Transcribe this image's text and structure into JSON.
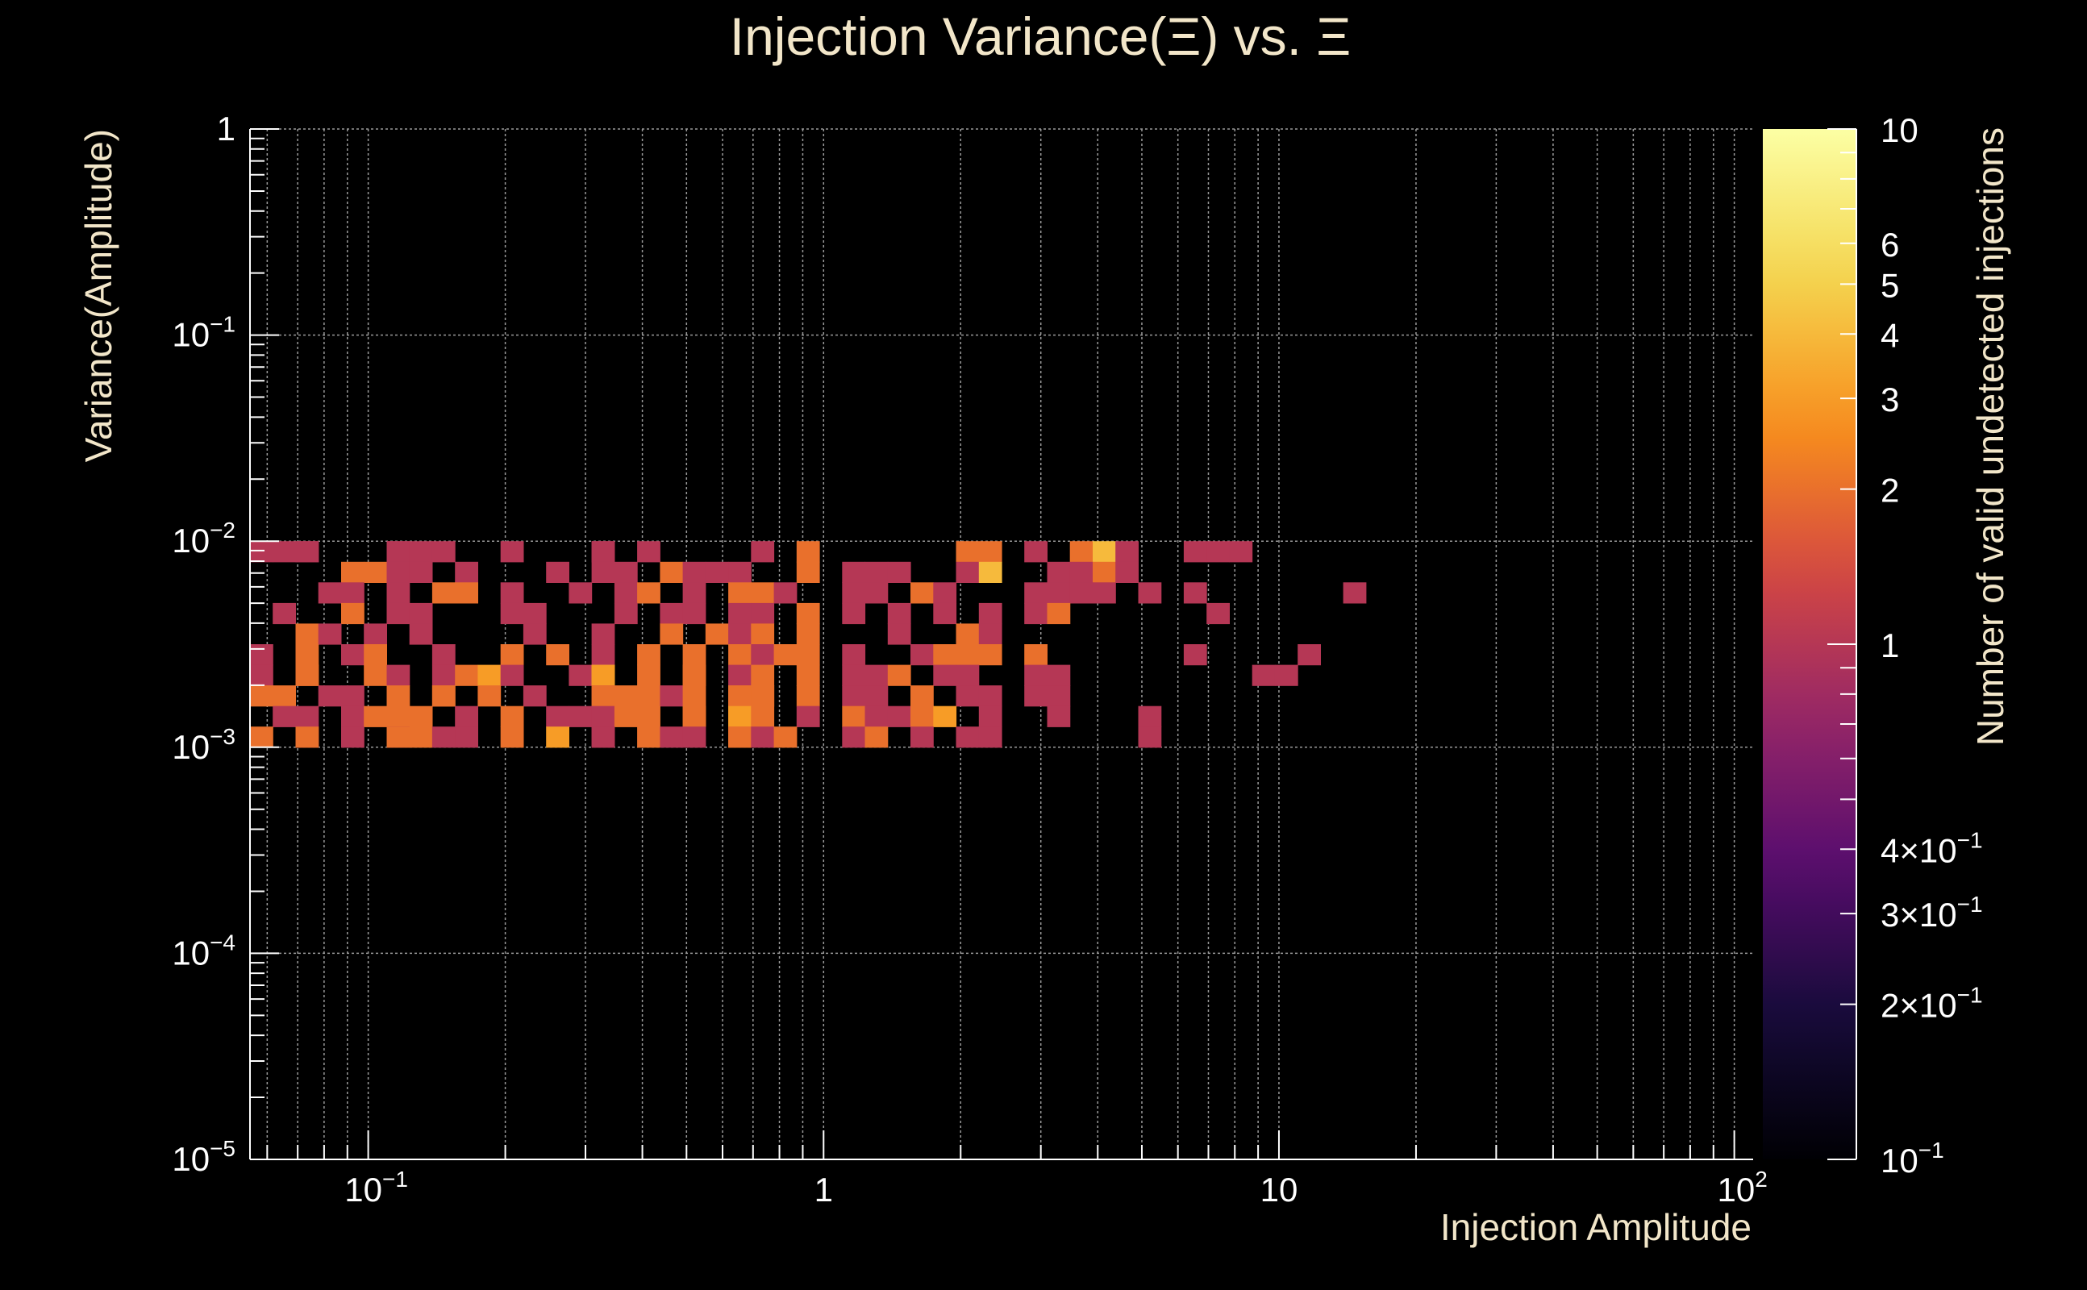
{
  "chart_data": {
    "type": "heatmap",
    "title": "Injection Variance(Ξ) vs. Ξ",
    "xlabel": "Injection Amplitude",
    "ylabel": "Variance(Amplitude)",
    "zlabel": "Number of valid undetected injections",
    "x_scale": "log",
    "y_scale": "log",
    "z_scale": "log",
    "xlim": [
      0.055,
      110
    ],
    "ylim": [
      1e-05,
      1
    ],
    "zlim": [
      0.1,
      10
    ],
    "grid": true,
    "colormap": "inferno",
    "x_bins": 66,
    "y_bins": 50,
    "x_ticks": [
      {
        "value": 0.1,
        "mant": "10",
        "exp": "−1"
      },
      {
        "value": 1,
        "mant": "1",
        "exp": ""
      },
      {
        "value": 10,
        "mant": "10",
        "exp": ""
      },
      {
        "value": 100,
        "mant": "10",
        "exp": "2"
      }
    ],
    "y_ticks": [
      {
        "value": 1,
        "mant": "1",
        "exp": ""
      },
      {
        "value": 0.1,
        "mant": "10",
        "exp": "−1"
      },
      {
        "value": 0.01,
        "mant": "10",
        "exp": "−2"
      },
      {
        "value": 0.001,
        "mant": "10",
        "exp": "−3"
      },
      {
        "value": 0.0001,
        "mant": "10",
        "exp": "−4"
      },
      {
        "value": 1e-05,
        "mant": "10",
        "exp": "−5"
      }
    ],
    "z_ticks": [
      {
        "value": 10,
        "mant": "10",
        "exp": ""
      },
      {
        "value": 6,
        "mant": "6",
        "exp": ""
      },
      {
        "value": 5,
        "mant": "5",
        "exp": ""
      },
      {
        "value": 4,
        "mant": "4",
        "exp": ""
      },
      {
        "value": 3,
        "mant": "3",
        "exp": ""
      },
      {
        "value": 2,
        "mant": "2",
        "exp": ""
      },
      {
        "value": 1,
        "mant": "1",
        "exp": ""
      },
      {
        "value": 0.4,
        "mant": "4×10",
        "exp": "−1"
      },
      {
        "value": 0.3,
        "mant": "3×10",
        "exp": "−1"
      },
      {
        "value": 0.2,
        "mant": "2×10",
        "exp": "−1"
      },
      {
        "value": 0.1,
        "mant": "10",
        "exp": "−1"
      }
    ],
    "cells": [
      {
        "x": 0.058,
        "y": 0.0093,
        "z": 1
      },
      {
        "x": 0.062,
        "y": 0.0093,
        "z": 1
      },
      {
        "x": 0.072,
        "y": 0.0093,
        "z": 1
      },
      {
        "x": 0.077,
        "y": 0.0093,
        "z": 1
      },
      {
        "x": 0.11,
        "y": 0.0093,
        "z": 1
      },
      {
        "x": 0.12,
        "y": 0.0093,
        "z": 1
      },
      {
        "x": 0.13,
        "y": 0.0093,
        "z": 1
      },
      {
        "x": 0.15,
        "y": 0.0093,
        "z": 1
      },
      {
        "x": 0.21,
        "y": 0.0093,
        "z": 1
      },
      {
        "x": 0.31,
        "y": 0.0093,
        "z": 1
      },
      {
        "x": 0.33,
        "y": 0.0093,
        "z": 1
      },
      {
        "x": 0.39,
        "y": 0.0093,
        "z": 1
      },
      {
        "x": 0.77,
        "y": 0.0093,
        "z": 1
      },
      {
        "x": 0.89,
        "y": 0.0093,
        "z": 2
      },
      {
        "x": 2.1,
        "y": 0.0093,
        "z": 2
      },
      {
        "x": 2.4,
        "y": 0.0093,
        "z": 2
      },
      {
        "x": 2.8,
        "y": 0.0093,
        "z": 1
      },
      {
        "x": 3.6,
        "y": 0.0093,
        "z": 2
      },
      {
        "x": 4.1,
        "y": 0.0093,
        "z": 4
      },
      {
        "x": 4.8,
        "y": 0.0093,
        "z": 1
      },
      {
        "x": 6.3,
        "y": 0.0093,
        "z": 1
      },
      {
        "x": 7.2,
        "y": 0.0093,
        "z": 1
      },
      {
        "x": 8.2,
        "y": 0.0093,
        "z": 1
      },
      {
        "x": 0.093,
        "y": 0.0074,
        "z": 2
      },
      {
        "x": 0.1,
        "y": 0.0074,
        "z": 2
      },
      {
        "x": 0.12,
        "y": 0.0074,
        "z": 1
      },
      {
        "x": 0.13,
        "y": 0.0074,
        "z": 1
      },
      {
        "x": 0.16,
        "y": 0.0074,
        "z": 1
      },
      {
        "x": 0.25,
        "y": 0.0074,
        "z": 1
      },
      {
        "x": 0.33,
        "y": 0.0074,
        "z": 1
      },
      {
        "x": 0.36,
        "y": 0.0074,
        "z": 1
      },
      {
        "x": 0.45,
        "y": 0.0074,
        "z": 2
      },
      {
        "x": 0.55,
        "y": 0.0074,
        "z": 1
      },
      {
        "x": 0.59,
        "y": 0.0074,
        "z": 1
      },
      {
        "x": 0.67,
        "y": 0.0074,
        "z": 1
      },
      {
        "x": 0.89,
        "y": 0.0074,
        "z": 2
      },
      {
        "x": 1.1,
        "y": 0.0074,
        "z": 1
      },
      {
        "x": 1.3,
        "y": 0.0074,
        "z": 1
      },
      {
        "x": 1.5,
        "y": 0.0074,
        "z": 1
      },
      {
        "x": 2.1,
        "y": 0.0074,
        "z": 1
      },
      {
        "x": 2.4,
        "y": 0.0074,
        "z": 4
      },
      {
        "x": 3.1,
        "y": 0.0074,
        "z": 1
      },
      {
        "x": 3.6,
        "y": 0.0074,
        "z": 1
      },
      {
        "x": 4.1,
        "y": 0.0074,
        "z": 2
      },
      {
        "x": 4.8,
        "y": 0.0074,
        "z": 1
      },
      {
        "x": 0.083,
        "y": 0.0059,
        "z": 1
      },
      {
        "x": 0.093,
        "y": 0.0059,
        "z": 1
      },
      {
        "x": 0.11,
        "y": 0.0059,
        "z": 1
      },
      {
        "x": 0.14,
        "y": 0.0059,
        "z": 2
      },
      {
        "x": 0.16,
        "y": 0.0059,
        "z": 2
      },
      {
        "x": 0.21,
        "y": 0.0059,
        "z": 1
      },
      {
        "x": 0.28,
        "y": 0.0059,
        "z": 1
      },
      {
        "x": 0.36,
        "y": 0.0059,
        "z": 1
      },
      {
        "x": 0.39,
        "y": 0.0059,
        "z": 2
      },
      {
        "x": 0.5,
        "y": 0.0059,
        "z": 1
      },
      {
        "x": 0.62,
        "y": 0.0059,
        "z": 2
      },
      {
        "x": 0.72,
        "y": 0.0059,
        "z": 2
      },
      {
        "x": 0.83,
        "y": 0.0059,
        "z": 1
      },
      {
        "x": 1.1,
        "y": 0.0059,
        "z": 1
      },
      {
        "x": 1.3,
        "y": 0.0059,
        "z": 1
      },
      {
        "x": 1.6,
        "y": 0.0059,
        "z": 2
      },
      {
        "x": 1.9,
        "y": 0.0059,
        "z": 1
      },
      {
        "x": 2.8,
        "y": 0.0059,
        "z": 1
      },
      {
        "x": 3.1,
        "y": 0.0059,
        "z": 1
      },
      {
        "x": 3.6,
        "y": 0.0059,
        "z": 1
      },
      {
        "x": 4.1,
        "y": 0.0059,
        "z": 1
      },
      {
        "x": 5.1,
        "y": 0.0059,
        "z": 1
      },
      {
        "x": 6.4,
        "y": 0.0059,
        "z": 1
      },
      {
        "x": 14,
        "y": 0.0059,
        "z": 1
      },
      {
        "x": 0.065,
        "y": 0.0047,
        "z": 1
      },
      {
        "x": 0.093,
        "y": 0.0047,
        "z": 2
      },
      {
        "x": 0.12,
        "y": 0.0047,
        "z": 1
      },
      {
        "x": 0.13,
        "y": 0.0047,
        "z": 1
      },
      {
        "x": 0.21,
        "y": 0.0047,
        "z": 1
      },
      {
        "x": 0.23,
        "y": 0.0047,
        "z": 1
      },
      {
        "x": 0.36,
        "y": 0.0047,
        "z": 1
      },
      {
        "x": 0.45,
        "y": 0.0047,
        "z": 1
      },
      {
        "x": 0.55,
        "y": 0.0047,
        "z": 1
      },
      {
        "x": 0.67,
        "y": 0.0047,
        "z": 1
      },
      {
        "x": 0.72,
        "y": 0.0047,
        "z": 1
      },
      {
        "x": 0.89,
        "y": 0.0047,
        "z": 2
      },
      {
        "x": 1.1,
        "y": 0.0047,
        "z": 1
      },
      {
        "x": 1.5,
        "y": 0.0047,
        "z": 1
      },
      {
        "x": 1.9,
        "y": 0.0047,
        "z": 1
      },
      {
        "x": 2.4,
        "y": 0.0047,
        "z": 1
      },
      {
        "x": 2.8,
        "y": 0.0047,
        "z": 1
      },
      {
        "x": 3.1,
        "y": 0.0047,
        "z": 2
      },
      {
        "x": 7.2,
        "y": 0.0047,
        "z": 1
      },
      {
        "x": 0.07,
        "y": 0.0037,
        "z": 2
      },
      {
        "x": 0.083,
        "y": 0.0037,
        "z": 1
      },
      {
        "x": 0.1,
        "y": 0.0037,
        "z": 1
      },
      {
        "x": 0.13,
        "y": 0.0037,
        "z": 1
      },
      {
        "x": 0.22,
        "y": 0.0037,
        "z": 1
      },
      {
        "x": 0.33,
        "y": 0.0037,
        "z": 1
      },
      {
        "x": 0.45,
        "y": 0.0037,
        "z": 2
      },
      {
        "x": 0.59,
        "y": 0.0037,
        "z": 2
      },
      {
        "x": 0.67,
        "y": 0.0037,
        "z": 1
      },
      {
        "x": 0.77,
        "y": 0.0037,
        "z": 2
      },
      {
        "x": 0.89,
        "y": 0.0037,
        "z": 2
      },
      {
        "x": 1.5,
        "y": 0.0037,
        "z": 1
      },
      {
        "x": 2.1,
        "y": 0.0037,
        "z": 2
      },
      {
        "x": 2.4,
        "y": 0.0037,
        "z": 1
      },
      {
        "x": 0.058,
        "y": 0.0029,
        "z": 1
      },
      {
        "x": 0.07,
        "y": 0.0029,
        "z": 2
      },
      {
        "x": 0.093,
        "y": 0.0029,
        "z": 1
      },
      {
        "x": 0.1,
        "y": 0.0029,
        "z": 2
      },
      {
        "x": 0.14,
        "y": 0.0029,
        "z": 1
      },
      {
        "x": 0.21,
        "y": 0.0029,
        "z": 2
      },
      {
        "x": 0.25,
        "y": 0.0029,
        "z": 2
      },
      {
        "x": 0.31,
        "y": 0.0029,
        "z": 1
      },
      {
        "x": 0.39,
        "y": 0.0029,
        "z": 2
      },
      {
        "x": 0.55,
        "y": 0.0029,
        "z": 2
      },
      {
        "x": 0.62,
        "y": 0.0029,
        "z": 2
      },
      {
        "x": 0.77,
        "y": 0.0029,
        "z": 1
      },
      {
        "x": 0.83,
        "y": 0.0029,
        "z": 2
      },
      {
        "x": 0.89,
        "y": 0.0029,
        "z": 2
      },
      {
        "x": 1.2,
        "y": 0.0029,
        "z": 1
      },
      {
        "x": 1.6,
        "y": 0.0029,
        "z": 1
      },
      {
        "x": 1.9,
        "y": 0.0029,
        "z": 2
      },
      {
        "x": 2.1,
        "y": 0.0029,
        "z": 2
      },
      {
        "x": 2.4,
        "y": 0.0029,
        "z": 2
      },
      {
        "x": 2.8,
        "y": 0.0029,
        "z": 2
      },
      {
        "x": 6.5,
        "y": 0.0029,
        "z": 1
      },
      {
        "x": 12,
        "y": 0.0029,
        "z": 1
      },
      {
        "x": 0.058,
        "y": 0.0023,
        "z": 1
      },
      {
        "x": 0.07,
        "y": 0.0023,
        "z": 2
      },
      {
        "x": 0.077,
        "y": 0.0023,
        "z": 2
      },
      {
        "x": 0.1,
        "y": 0.0023,
        "z": 2
      },
      {
        "x": 0.12,
        "y": 0.0023,
        "z": 1
      },
      {
        "x": 0.14,
        "y": 0.0023,
        "z": 1
      },
      {
        "x": 0.16,
        "y": 0.0023,
        "z": 2
      },
      {
        "x": 0.18,
        "y": 0.0023,
        "z": 3
      },
      {
        "x": 0.21,
        "y": 0.0023,
        "z": 1
      },
      {
        "x": 0.28,
        "y": 0.0023,
        "z": 1
      },
      {
        "x": 0.31,
        "y": 0.0023,
        "z": 5
      },
      {
        "x": 0.33,
        "y": 0.0023,
        "z": 3
      },
      {
        "x": 0.39,
        "y": 0.0023,
        "z": 2
      },
      {
        "x": 0.5,
        "y": 0.0023,
        "z": 2
      },
      {
        "x": 0.55,
        "y": 0.0023,
        "z": 2
      },
      {
        "x": 0.62,
        "y": 0.0023,
        "z": 1
      },
      {
        "x": 0.72,
        "y": 0.0023,
        "z": 2
      },
      {
        "x": 0.89,
        "y": 0.0023,
        "z": 2
      },
      {
        "x": 1.2,
        "y": 0.0023,
        "z": 1
      },
      {
        "x": 1.3,
        "y": 0.0023,
        "z": 1
      },
      {
        "x": 1.5,
        "y": 0.0023,
        "z": 2
      },
      {
        "x": 1.9,
        "y": 0.0023,
        "z": 1
      },
      {
        "x": 2.1,
        "y": 0.0023,
        "z": 1
      },
      {
        "x": 2.8,
        "y": 0.0023,
        "z": 1
      },
      {
        "x": 3.1,
        "y": 0.0023,
        "z": 1
      },
      {
        "x": 9.5,
        "y": 0.0023,
        "z": 1
      },
      {
        "x": 10.5,
        "y": 0.0023,
        "z": 1
      },
      {
        "x": 0.058,
        "y": 0.0019,
        "z": 2
      },
      {
        "x": 0.062,
        "y": 0.0019,
        "z": 2
      },
      {
        "x": 0.083,
        "y": 0.0019,
        "z": 1
      },
      {
        "x": 0.093,
        "y": 0.0019,
        "z": 1
      },
      {
        "x": 0.11,
        "y": 0.0019,
        "z": 2
      },
      {
        "x": 0.14,
        "y": 0.0019,
        "z": 2
      },
      {
        "x": 0.15,
        "y": 0.0019,
        "z": 2
      },
      {
        "x": 0.18,
        "y": 0.0019,
        "z": 2
      },
      {
        "x": 0.22,
        "y": 0.0019,
        "z": 1
      },
      {
        "x": 0.31,
        "y": 0.0019,
        "z": 1
      },
      {
        "x": 0.34,
        "y": 0.0019,
        "z": 2
      },
      {
        "x": 0.36,
        "y": 0.0019,
        "z": 2
      },
      {
        "x": 0.39,
        "y": 0.0019,
        "z": 2
      },
      {
        "x": 0.45,
        "y": 0.0019,
        "z": 1
      },
      {
        "x": 0.55,
        "y": 0.0019,
        "z": 2
      },
      {
        "x": 0.62,
        "y": 0.0019,
        "z": 2
      },
      {
        "x": 0.67,
        "y": 0.0019,
        "z": 2
      },
      {
        "x": 0.72,
        "y": 0.0019,
        "z": 2
      },
      {
        "x": 0.77,
        "y": 0.0019,
        "z": 2
      },
      {
        "x": 0.89,
        "y": 0.0019,
        "z": 2
      },
      {
        "x": 1.1,
        "y": 0.0019,
        "z": 1
      },
      {
        "x": 1.3,
        "y": 0.0019,
        "z": 1
      },
      {
        "x": 1.6,
        "y": 0.0019,
        "z": 2
      },
      {
        "x": 2.1,
        "y": 0.0019,
        "z": 1
      },
      {
        "x": 2.4,
        "y": 0.0019,
        "z": 1
      },
      {
        "x": 2.8,
        "y": 0.0019,
        "z": 1
      },
      {
        "x": 3.1,
        "y": 0.0019,
        "z": 1
      },
      {
        "x": 0.062,
        "y": 0.0015,
        "z": 1
      },
      {
        "x": 0.07,
        "y": 0.0015,
        "z": 1
      },
      {
        "x": 0.093,
        "y": 0.0015,
        "z": 1
      },
      {
        "x": 0.1,
        "y": 0.0015,
        "z": 2
      },
      {
        "x": 0.11,
        "y": 0.0015,
        "z": 2
      },
      {
        "x": 0.13,
        "y": 0.0015,
        "z": 2
      },
      {
        "x": 0.16,
        "y": 0.0015,
        "z": 1
      },
      {
        "x": 0.21,
        "y": 0.0015,
        "z": 2
      },
      {
        "x": 0.25,
        "y": 0.0015,
        "z": 1
      },
      {
        "x": 0.28,
        "y": 0.0015,
        "z": 1
      },
      {
        "x": 0.31,
        "y": 0.0015,
        "z": 1
      },
      {
        "x": 0.36,
        "y": 0.0015,
        "z": 2
      },
      {
        "x": 0.39,
        "y": 0.0015,
        "z": 2
      },
      {
        "x": 0.5,
        "y": 0.0015,
        "z": 2
      },
      {
        "x": 0.55,
        "y": 0.0015,
        "z": 2
      },
      {
        "x": 0.62,
        "y": 0.0015,
        "z": 2
      },
      {
        "x": 0.67,
        "y": 0.0015,
        "z": 3
      },
      {
        "x": 0.77,
        "y": 0.0015,
        "z": 2
      },
      {
        "x": 0.89,
        "y": 0.0015,
        "z": 1
      },
      {
        "x": 1.2,
        "y": 0.0015,
        "z": 2
      },
      {
        "x": 1.3,
        "y": 0.0015,
        "z": 1
      },
      {
        "x": 1.5,
        "y": 0.0015,
        "z": 1
      },
      {
        "x": 1.6,
        "y": 0.0015,
        "z": 2
      },
      {
        "x": 1.9,
        "y": 0.0015,
        "z": 3
      },
      {
        "x": 2.4,
        "y": 0.0015,
        "z": 1
      },
      {
        "x": 3.1,
        "y": 0.0015,
        "z": 1
      },
      {
        "x": 5.4,
        "y": 0.0015,
        "z": 1
      },
      {
        "x": 0.058,
        "y": 0.0012,
        "z": 2
      },
      {
        "x": 0.07,
        "y": 0.0012,
        "z": 1
      },
      {
        "x": 0.077,
        "y": 0.0012,
        "z": 2
      },
      {
        "x": 0.093,
        "y": 0.0012,
        "z": 1
      },
      {
        "x": 0.11,
        "y": 0.0012,
        "z": 1
      },
      {
        "x": 0.12,
        "y": 0.0012,
        "z": 2
      },
      {
        "x": 0.13,
        "y": 0.0012,
        "z": 2
      },
      {
        "x": 0.14,
        "y": 0.0012,
        "z": 1
      },
      {
        "x": 0.16,
        "y": 0.0012,
        "z": 1
      },
      {
        "x": 0.21,
        "y": 0.0012,
        "z": 2
      },
      {
        "x": 0.25,
        "y": 0.0012,
        "z": 3
      },
      {
        "x": 0.31,
        "y": 0.0012,
        "z": 1
      },
      {
        "x": 0.33,
        "y": 0.0012,
        "z": 1
      },
      {
        "x": 0.39,
        "y": 0.0012,
        "z": 2
      },
      {
        "x": 0.45,
        "y": 0.0012,
        "z": 1
      },
      {
        "x": 0.55,
        "y": 0.0012,
        "z": 1
      },
      {
        "x": 0.62,
        "y": 0.0012,
        "z": 2
      },
      {
        "x": 0.67,
        "y": 0.0012,
        "z": 2
      },
      {
        "x": 0.72,
        "y": 0.0012,
        "z": 1
      },
      {
        "x": 0.83,
        "y": 0.0012,
        "z": 2
      },
      {
        "x": 1.1,
        "y": 0.0012,
        "z": 1
      },
      {
        "x": 1.3,
        "y": 0.0012,
        "z": 2
      },
      {
        "x": 1.6,
        "y": 0.0012,
        "z": 1
      },
      {
        "x": 2.1,
        "y": 0.0012,
        "z": 1
      },
      {
        "x": 2.4,
        "y": 0.0012,
        "z": 1
      },
      {
        "x": 5.4,
        "y": 0.0012,
        "z": 1
      }
    ]
  }
}
